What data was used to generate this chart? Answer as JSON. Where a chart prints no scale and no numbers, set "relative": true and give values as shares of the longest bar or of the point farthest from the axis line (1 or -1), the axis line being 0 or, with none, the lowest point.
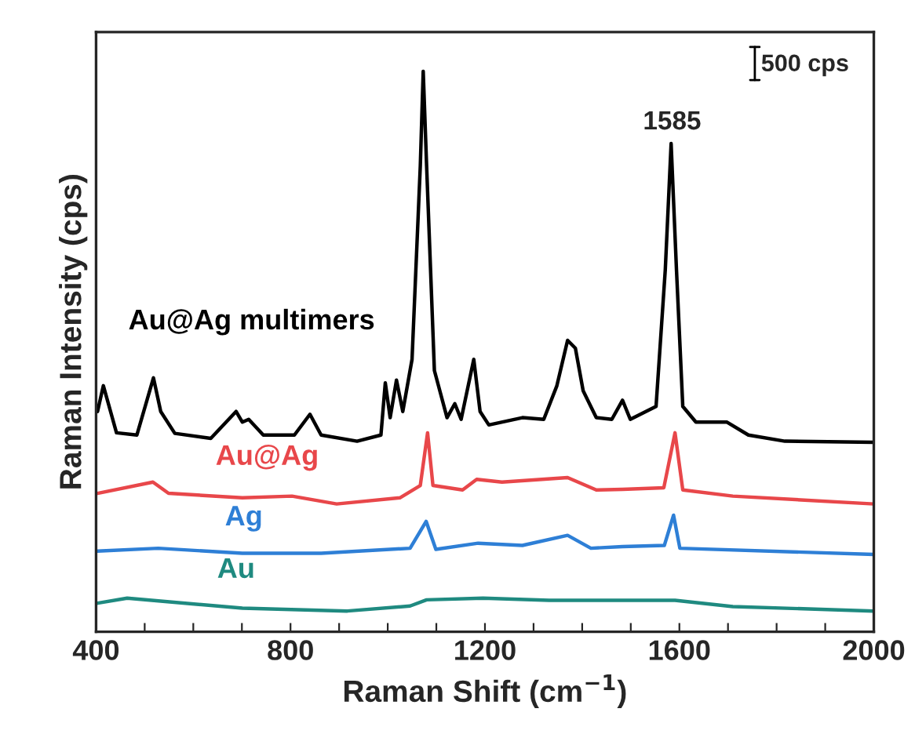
{
  "chart_data": {
    "type": "line",
    "relative": true,
    "xlabel": "Raman Shift (cm$^{−1}$)",
    "ylabel": "Raman Intensity (cps)",
    "xlim": [
      400,
      2000
    ],
    "xticks": [
      400,
      {
        "value": 500,
        "label": null
      },
      {
        "value": 600,
        "label": null
      },
      {
        "value": 700,
        "label": null
      },
      800,
      {
        "value": 900,
        "label": null
      },
      {
        "value": 1000,
        "label": null
      },
      {
        "value": 1100,
        "label": null
      },
      1200,
      {
        "value": 1300,
        "label": null
      },
      {
        "value": 1400,
        "label": null
      },
      {
        "value": 1500,
        "label": null
      },
      1600,
      {
        "value": 1700,
        "label": null
      },
      {
        "value": 1800,
        "label": null
      },
      {
        "value": 1900,
        "label": null
      },
      2000
    ],
    "tick_labels": "x",
    "annotations": [
      {
        "text": "1585",
        "x": 1585,
        "y": 0.871
      },
      "500 cps"
    ],
    "series": [
      {
        "name": "Au@Ag multimers",
        "color": "#000000",
        "x": [
          403,
          415,
          442,
          484,
          518,
          533,
          562,
          636,
          688,
          701,
          714,
          744,
          808,
          840,
          863,
          937,
          986,
          995,
          1005,
          1018,
          1031,
          1050,
          1067,
          1073,
          1080,
          1096,
          1122,
          1138,
          1151,
          1177,
          1190,
          1208,
          1277,
          1321,
          1348,
          1370,
          1386,
          1402,
          1429,
          1461,
          1483,
          1499,
          1552,
          1571,
          1583,
          1594,
          1607,
          1634,
          1698,
          1742,
          1817,
          2000
        ],
        "values": [
          0.393,
          0.439,
          0.355,
          0.351,
          0.453,
          0.393,
          0.354,
          0.345,
          0.393,
          0.374,
          0.379,
          0.351,
          0.351,
          0.388,
          0.351,
          0.34,
          0.351,
          0.444,
          0.382,
          0.449,
          0.393,
          0.486,
          0.831,
          1.0,
          0.831,
          0.466,
          0.382,
          0.407,
          0.379,
          0.486,
          0.393,
          0.369,
          0.382,
          0.379,
          0.439,
          0.52,
          0.506,
          0.43,
          0.382,
          0.379,
          0.413,
          0.379,
          0.402,
          0.646,
          0.871,
          0.646,
          0.402,
          0.374,
          0.374,
          0.351,
          0.34,
          0.338
        ]
      },
      {
        "name": "Au@Ag",
        "color": "#e8474a",
        "x": [
          403,
          517,
          549,
          701,
          803,
          895,
          1025,
          1067,
          1082,
          1093,
          1154,
          1183,
          1235,
          1370,
          1429,
          1483,
          1568,
          1591,
          1607,
          1710,
          2000
        ],
        "values": [
          0.247,
          0.267,
          0.247,
          0.239,
          0.242,
          0.228,
          0.239,
          0.261,
          0.355,
          0.261,
          0.253,
          0.272,
          0.267,
          0.275,
          0.253,
          0.254,
          0.257,
          0.355,
          0.253,
          0.242,
          0.228
        ]
      },
      {
        "name": "Ag",
        "color": "#2e7fd6",
        "x": [
          403,
          528,
          701,
          863,
          1046,
          1079,
          1099,
          1186,
          1277,
          1370,
          1418,
          1483,
          1569,
          1588,
          1601,
          2000
        ],
        "values": [
          0.144,
          0.149,
          0.14,
          0.14,
          0.149,
          0.197,
          0.147,
          0.158,
          0.154,
          0.172,
          0.149,
          0.152,
          0.154,
          0.208,
          0.149,
          0.138
        ]
      },
      {
        "name": "Au",
        "color": "#1f8a80",
        "x": [
          403,
          464,
          701,
          917,
          1046,
          1080,
          1196,
          1332,
          1591,
          1710,
          2000
        ],
        "values": [
          0.051,
          0.06,
          0.042,
          0.037,
          0.046,
          0.057,
          0.06,
          0.056,
          0.056,
          0.045,
          0.037
        ]
      }
    ]
  }
}
